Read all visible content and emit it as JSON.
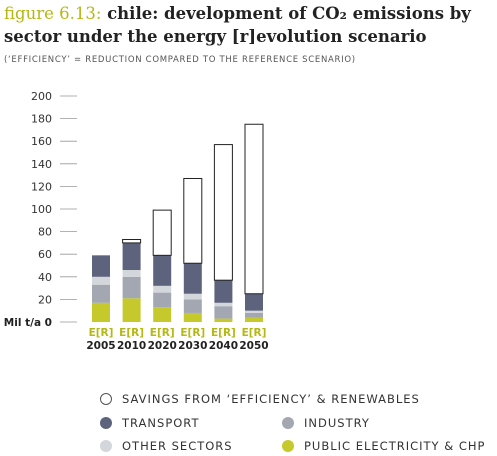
{
  "figure": {
    "label": "figure 6.13:",
    "title": "chile: development of CO₂ emissions by sector under the energy [r]evolution scenario",
    "subtitle": "(‘EFFICIENCY’ = REDUCTION COMPARED TO THE REFERENCE SCENARIO)"
  },
  "chart_data": {
    "type": "bar",
    "stacked": true,
    "ylabel": "Mil t/a",
    "ylim": [
      0,
      200
    ],
    "yticks": [
      0,
      20,
      40,
      60,
      80,
      100,
      120,
      140,
      160,
      180,
      200
    ],
    "grid": false,
    "categories": [
      "2005",
      "2010",
      "2020",
      "2030",
      "2040",
      "2050"
    ],
    "category_label": "E[R]",
    "series": [
      {
        "name": "PUBLIC ELECTRICITY & CHP",
        "color": "#c5c92c",
        "values": [
          17,
          21,
          13,
          8,
          3,
          4
        ]
      },
      {
        "name": "INDUSTRY",
        "color": "#a2a7b2",
        "values": [
          16,
          19,
          13,
          12,
          11,
          4
        ]
      },
      {
        "name": "OTHER SECTORS",
        "color": "#d3d7dc",
        "values": [
          7,
          6,
          6,
          5,
          3,
          2
        ]
      },
      {
        "name": "TRANSPORT",
        "color": "#5e637d",
        "values": [
          19,
          24,
          27,
          27,
          20,
          15
        ]
      },
      {
        "name": "SAVINGS FROM ‘EFFICIENCY’ & RENEWABLES",
        "color": "#ffffff",
        "values": [
          0,
          3,
          40,
          75,
          120,
          150
        ]
      }
    ]
  },
  "legend": [
    {
      "label": "SAVINGS FROM ‘EFFICIENCY’ & RENEWABLES",
      "color": "#ffffff",
      "outline": true
    },
    {
      "label": "TRANSPORT",
      "color": "#5e637d"
    },
    {
      "label": "INDUSTRY",
      "color": "#a2a7b2"
    },
    {
      "label": "OTHER SECTORS",
      "color": "#d3d7dc"
    },
    {
      "label": "PUBLIC ELECTRICITY & CHP",
      "color": "#c5c92c"
    }
  ]
}
